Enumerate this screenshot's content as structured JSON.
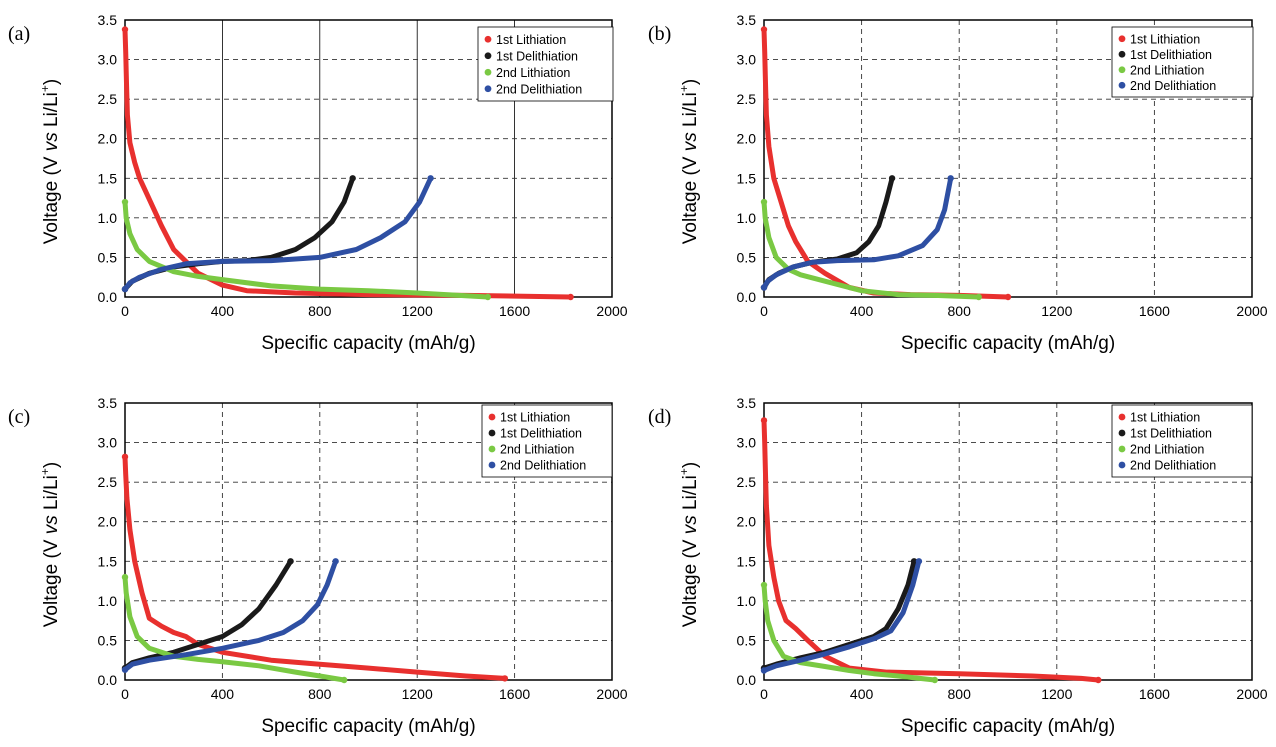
{
  "figure": {
    "x_label": "Specific capacity (mAh/g)",
    "y_label_parts": {
      "a": "Voltage (V ",
      "italic": "vs",
      "b": " Li/Li",
      "sup": "+",
      "c": ")"
    },
    "colors": {
      "1st Lithiation": "#e8302e",
      "1st Delithiation": "#1a1a1a",
      "2nd Lithiation": "#7ac943",
      "2nd Delithiation": "#2e4fa3"
    },
    "x_ticks": [
      "0",
      "400",
      "800",
      "1200",
      "1600",
      "2000"
    ],
    "y_ticks": [
      "0.0",
      "0.5",
      "1.0",
      "1.5",
      "2.0",
      "2.5",
      "3.0",
      "3.5"
    ]
  },
  "chart_data": [
    {
      "panel": "(a)",
      "type": "line",
      "xlim": [
        0,
        2000
      ],
      "ylim": [
        0,
        3.5
      ],
      "grid": "solid-vertical, dashed-horizontal",
      "legend_position": "top-right",
      "series": [
        {
          "name": "1st Lithiation",
          "points": [
            [
              0,
              3.38
            ],
            [
              3,
              3.1
            ],
            [
              6,
              2.7
            ],
            [
              10,
              2.3
            ],
            [
              20,
              1.95
            ],
            [
              40,
              1.7
            ],
            [
              60,
              1.5
            ],
            [
              90,
              1.3
            ],
            [
              120,
              1.1
            ],
            [
              150,
              0.9
            ],
            [
              200,
              0.6
            ],
            [
              250,
              0.45
            ],
            [
              300,
              0.3
            ],
            [
              400,
              0.15
            ],
            [
              500,
              0.08
            ],
            [
              700,
              0.05
            ],
            [
              1000,
              0.03
            ],
            [
              1400,
              0.02
            ],
            [
              1830,
              0.0
            ]
          ]
        },
        {
          "name": "1st Delithiation",
          "points": [
            [
              0,
              0.1
            ],
            [
              30,
              0.2
            ],
            [
              100,
              0.3
            ],
            [
              200,
              0.38
            ],
            [
              300,
              0.42
            ],
            [
              400,
              0.45
            ],
            [
              500,
              0.46
            ],
            [
              600,
              0.5
            ],
            [
              700,
              0.6
            ],
            [
              780,
              0.75
            ],
            [
              850,
              0.95
            ],
            [
              900,
              1.2
            ],
            [
              935,
              1.5
            ]
          ]
        },
        {
          "name": "2nd Lithiation",
          "points": [
            [
              0,
              1.2
            ],
            [
              5,
              1.0
            ],
            [
              20,
              0.8
            ],
            [
              50,
              0.6
            ],
            [
              100,
              0.45
            ],
            [
              200,
              0.32
            ],
            [
              300,
              0.26
            ],
            [
              400,
              0.22
            ],
            [
              600,
              0.14
            ],
            [
              800,
              0.1
            ],
            [
              1000,
              0.08
            ],
            [
              1200,
              0.05
            ],
            [
              1490,
              0.0
            ]
          ]
        },
        {
          "name": "2nd Delithiation",
          "points": [
            [
              0,
              0.1
            ],
            [
              20,
              0.18
            ],
            [
              60,
              0.25
            ],
            [
              150,
              0.35
            ],
            [
              250,
              0.42
            ],
            [
              400,
              0.45
            ],
            [
              600,
              0.46
            ],
            [
              800,
              0.5
            ],
            [
              950,
              0.6
            ],
            [
              1050,
              0.75
            ],
            [
              1150,
              0.95
            ],
            [
              1210,
              1.2
            ],
            [
              1255,
              1.5
            ]
          ]
        }
      ]
    },
    {
      "panel": "(b)",
      "type": "line",
      "xlim": [
        0,
        2000
      ],
      "ylim": [
        0,
        3.5
      ],
      "grid": "dashed",
      "legend_position": "top-right",
      "series": [
        {
          "name": "1st Lithiation",
          "points": [
            [
              0,
              3.38
            ],
            [
              3,
              3.1
            ],
            [
              6,
              2.7
            ],
            [
              10,
              2.3
            ],
            [
              20,
              1.9
            ],
            [
              40,
              1.5
            ],
            [
              70,
              1.2
            ],
            [
              100,
              0.9
            ],
            [
              130,
              0.7
            ],
            [
              180,
              0.45
            ],
            [
              250,
              0.3
            ],
            [
              350,
              0.12
            ],
            [
              450,
              0.05
            ],
            [
              600,
              0.03
            ],
            [
              800,
              0.02
            ],
            [
              1000,
              0.0
            ]
          ]
        },
        {
          "name": "1st Delithiation",
          "points": [
            [
              0,
              0.12
            ],
            [
              20,
              0.22
            ],
            [
              60,
              0.3
            ],
            [
              120,
              0.38
            ],
            [
              200,
              0.44
            ],
            [
              300,
              0.48
            ],
            [
              380,
              0.56
            ],
            [
              430,
              0.7
            ],
            [
              470,
              0.9
            ],
            [
              500,
              1.2
            ],
            [
              525,
              1.5
            ]
          ]
        },
        {
          "name": "2nd Lithiation",
          "points": [
            [
              0,
              1.2
            ],
            [
              5,
              1.0
            ],
            [
              20,
              0.75
            ],
            [
              50,
              0.5
            ],
            [
              100,
              0.35
            ],
            [
              150,
              0.28
            ],
            [
              250,
              0.2
            ],
            [
              400,
              0.08
            ],
            [
              550,
              0.03
            ],
            [
              700,
              0.02
            ],
            [
              880,
              0.0
            ]
          ]
        },
        {
          "name": "2nd Delithiation",
          "points": [
            [
              0,
              0.12
            ],
            [
              15,
              0.2
            ],
            [
              50,
              0.28
            ],
            [
              120,
              0.38
            ],
            [
              200,
              0.44
            ],
            [
              300,
              0.46
            ],
            [
              450,
              0.47
            ],
            [
              550,
              0.52
            ],
            [
              650,
              0.65
            ],
            [
              710,
              0.85
            ],
            [
              740,
              1.1
            ],
            [
              765,
              1.5
            ]
          ]
        }
      ]
    },
    {
      "panel": "(c)",
      "type": "line",
      "xlim": [
        0,
        2000
      ],
      "ylim": [
        0,
        3.5
      ],
      "grid": "dashed",
      "legend_position": "top-right",
      "series": [
        {
          "name": "1st Lithiation",
          "points": [
            [
              0,
              2.82
            ],
            [
              3,
              2.6
            ],
            [
              8,
              2.3
            ],
            [
              20,
              1.9
            ],
            [
              40,
              1.5
            ],
            [
              70,
              1.1
            ],
            [
              100,
              0.78
            ],
            [
              150,
              0.68
            ],
            [
              200,
              0.6
            ],
            [
              250,
              0.55
            ],
            [
              300,
              0.45
            ],
            [
              400,
              0.35
            ],
            [
              600,
              0.25
            ],
            [
              800,
              0.2
            ],
            [
              1000,
              0.15
            ],
            [
              1200,
              0.1
            ],
            [
              1400,
              0.05
            ],
            [
              1560,
              0.02
            ]
          ]
        },
        {
          "name": "1st Delithiation",
          "points": [
            [
              0,
              0.15
            ],
            [
              30,
              0.22
            ],
            [
              100,
              0.28
            ],
            [
              200,
              0.35
            ],
            [
              300,
              0.45
            ],
            [
              400,
              0.55
            ],
            [
              480,
              0.7
            ],
            [
              550,
              0.9
            ],
            [
              620,
              1.2
            ],
            [
              680,
              1.5
            ]
          ]
        },
        {
          "name": "2nd Lithiation",
          "points": [
            [
              0,
              1.3
            ],
            [
              5,
              1.1
            ],
            [
              20,
              0.8
            ],
            [
              50,
              0.55
            ],
            [
              100,
              0.4
            ],
            [
              200,
              0.3
            ],
            [
              300,
              0.26
            ],
            [
              400,
              0.23
            ],
            [
              550,
              0.18
            ],
            [
              700,
              0.1
            ],
            [
              800,
              0.05
            ],
            [
              900,
              0.0
            ]
          ]
        },
        {
          "name": "2nd Delithiation",
          "points": [
            [
              0,
              0.13
            ],
            [
              30,
              0.2
            ],
            [
              100,
              0.25
            ],
            [
              250,
              0.32
            ],
            [
              400,
              0.4
            ],
            [
              550,
              0.5
            ],
            [
              650,
              0.6
            ],
            [
              730,
              0.75
            ],
            [
              790,
              0.95
            ],
            [
              830,
              1.2
            ],
            [
              865,
              1.5
            ]
          ]
        }
      ]
    },
    {
      "panel": "(d)",
      "type": "line",
      "xlim": [
        0,
        2000
      ],
      "ylim": [
        0,
        3.5
      ],
      "grid": "dashed",
      "legend_position": "top-right",
      "series": [
        {
          "name": "1st Lithiation",
          "points": [
            [
              0,
              3.28
            ],
            [
              3,
              3.0
            ],
            [
              6,
              2.6
            ],
            [
              10,
              2.2
            ],
            [
              20,
              1.7
            ],
            [
              40,
              1.3
            ],
            [
              60,
              1.0
            ],
            [
              90,
              0.75
            ],
            [
              130,
              0.65
            ],
            [
              180,
              0.5
            ],
            [
              250,
              0.3
            ],
            [
              350,
              0.15
            ],
            [
              500,
              0.1
            ],
            [
              800,
              0.08
            ],
            [
              1100,
              0.05
            ],
            [
              1300,
              0.02
            ],
            [
              1370,
              0.0
            ]
          ]
        },
        {
          "name": "1st Delithiation",
          "points": [
            [
              0,
              0.15
            ],
            [
              50,
              0.2
            ],
            [
              150,
              0.28
            ],
            [
              250,
              0.35
            ],
            [
              350,
              0.45
            ],
            [
              450,
              0.55
            ],
            [
              500,
              0.65
            ],
            [
              550,
              0.9
            ],
            [
              590,
              1.2
            ],
            [
              615,
              1.5
            ]
          ]
        },
        {
          "name": "2nd Lithiation",
          "points": [
            [
              0,
              1.2
            ],
            [
              5,
              1.0
            ],
            [
              15,
              0.75
            ],
            [
              40,
              0.5
            ],
            [
              80,
              0.3
            ],
            [
              150,
              0.22
            ],
            [
              250,
              0.17
            ],
            [
              350,
              0.12
            ],
            [
              450,
              0.08
            ],
            [
              550,
              0.05
            ],
            [
              700,
              0.0
            ]
          ]
        },
        {
          "name": "2nd Delithiation",
          "points": [
            [
              0,
              0.12
            ],
            [
              50,
              0.18
            ],
            [
              150,
              0.25
            ],
            [
              250,
              0.33
            ],
            [
              350,
              0.42
            ],
            [
              450,
              0.52
            ],
            [
              520,
              0.62
            ],
            [
              570,
              0.85
            ],
            [
              610,
              1.2
            ],
            [
              635,
              1.5
            ]
          ]
        }
      ]
    }
  ]
}
